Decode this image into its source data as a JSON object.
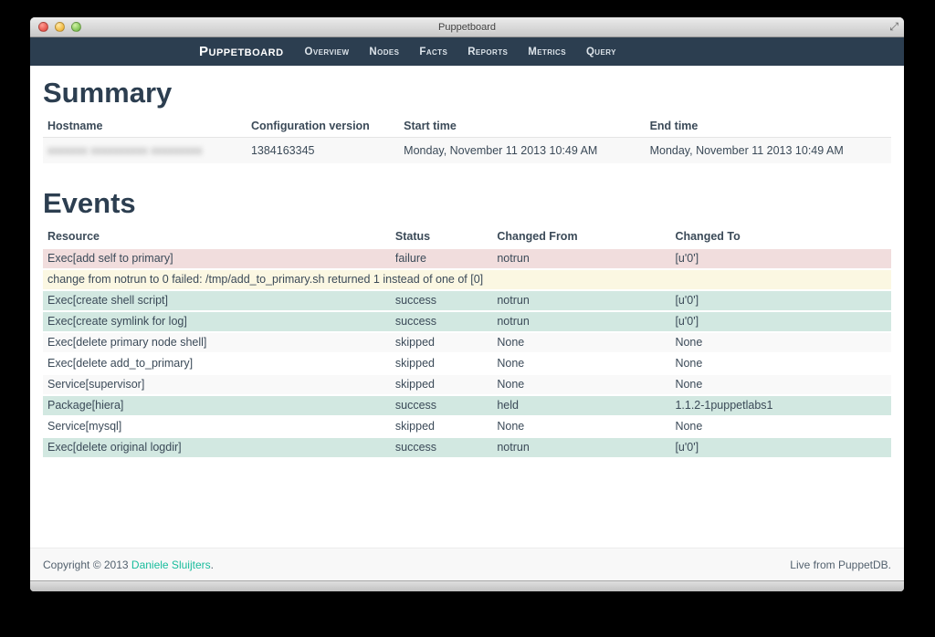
{
  "window": {
    "title": "Puppetboard",
    "fullscreen_glyph": "⤢"
  },
  "navbar": {
    "brand": "Puppetboard",
    "items": [
      "Overview",
      "Nodes",
      "Facts",
      "Reports",
      "Metrics",
      "Query"
    ]
  },
  "summary": {
    "heading": "Summary",
    "columns": [
      "Hostname",
      "Configuration version",
      "Start time",
      "End time"
    ],
    "row": {
      "hostname_redacted_text": "xxxxxxx xxxxxxxxxx xxxxxxxxx",
      "configuration_version": "1384163345",
      "start_time": "Monday, November 11 2013 10:49 AM",
      "end_time": "Monday, November 11 2013 10:49 AM"
    }
  },
  "events": {
    "heading": "Events",
    "columns": [
      "Resource",
      "Status",
      "Changed From",
      "Changed To"
    ],
    "rows": [
      {
        "type": "failure",
        "striped": false,
        "resource": "Exec[add self to primary]",
        "status": "failure",
        "changed_from": "notrun",
        "changed_to": "[u'0']"
      },
      {
        "type": "message",
        "striped": false,
        "message": "change from notrun to 0 failed: /tmp/add_to_primary.sh returned 1 instead of one of [0]"
      },
      {
        "type": "success",
        "striped": false,
        "resource": "Exec[create shell script]",
        "status": "success",
        "changed_from": "notrun",
        "changed_to": "[u'0']"
      },
      {
        "type": "success",
        "striped": false,
        "resource": "Exec[create symlink for log]",
        "status": "success",
        "changed_from": "notrun",
        "changed_to": "[u'0']"
      },
      {
        "type": "skipped",
        "striped": true,
        "resource": "Exec[delete primary node shell]",
        "status": "skipped",
        "changed_from": "None",
        "changed_to": "None"
      },
      {
        "type": "skipped",
        "striped": false,
        "resource": "Exec[delete add_to_primary]",
        "status": "skipped",
        "changed_from": "None",
        "changed_to": "None"
      },
      {
        "type": "skipped",
        "striped": true,
        "resource": "Service[supervisor]",
        "status": "skipped",
        "changed_from": "None",
        "changed_to": "None"
      },
      {
        "type": "success",
        "striped": false,
        "resource": "Package[hiera]",
        "status": "success",
        "changed_from": "held",
        "changed_to": "1.1.2-1puppetlabs1"
      },
      {
        "type": "skipped",
        "striped": false,
        "resource": "Service[mysql]",
        "status": "skipped",
        "changed_from": "None",
        "changed_to": "None"
      },
      {
        "type": "success",
        "striped": false,
        "resource": "Exec[delete original logdir]",
        "status": "success",
        "changed_from": "notrun",
        "changed_to": "[u'0']"
      }
    ]
  },
  "footer": {
    "copyright_prefix": "Copyright © 2013 ",
    "copyright_link": "Daniele Sluijters",
    "copyright_suffix": ".",
    "right_text": "Live from PuppetDB."
  },
  "colors": {
    "navbar_bg": "#2c3e50",
    "heading": "#2c3e50",
    "link_accent": "#18bc9c",
    "row_failure_bg": "#f1dddd",
    "row_message_bg": "#fbf7e2",
    "row_success_bg": "#d2e8e1",
    "row_striped_bg": "#f9f9f9"
  }
}
